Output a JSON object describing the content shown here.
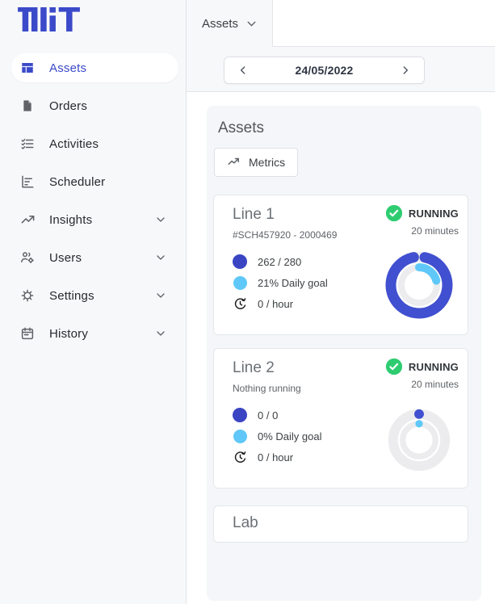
{
  "logo": {
    "brand": "TilliT"
  },
  "sidebar": {
    "items": [
      {
        "label": "Assets",
        "icon": "dashboard-icon",
        "selected": true,
        "expandable": false
      },
      {
        "label": "Orders",
        "icon": "document-icon",
        "selected": false,
        "expandable": false
      },
      {
        "label": "Activities",
        "icon": "checklist-icon",
        "selected": false,
        "expandable": false
      },
      {
        "label": "Scheduler",
        "icon": "gantt-icon",
        "selected": false,
        "expandable": false
      },
      {
        "label": "Insights",
        "icon": "trending-icon",
        "selected": false,
        "expandable": true
      },
      {
        "label": "Users",
        "icon": "users-gear-icon",
        "selected": false,
        "expandable": true
      },
      {
        "label": "Settings",
        "icon": "gear-icon",
        "selected": false,
        "expandable": true
      },
      {
        "label": "History",
        "icon": "calendar-icon",
        "selected": false,
        "expandable": true
      }
    ]
  },
  "tabbar": {
    "active_tab": "Assets"
  },
  "datebar": {
    "date": "24/05/2022"
  },
  "assets": {
    "heading": "Assets",
    "metrics_button": "Metrics",
    "cards": [
      {
        "title": "Line 1",
        "subtitle": "#SCH457920 - 2000469",
        "status": "RUNNING",
        "status_duration": "20 minutes",
        "stats": {
          "produced": "262 / 280",
          "daily_goal": "21% Daily goal",
          "rate": "0  / hour"
        },
        "donut": {
          "primary_pct": 93.6,
          "secondary_pct": 21
        }
      },
      {
        "title": "Line 2",
        "subtitle": "Nothing running",
        "status": "RUNNING",
        "status_duration": "20 minutes",
        "stats": {
          "produced": "0 / 0",
          "daily_goal": "0% Daily goal",
          "rate": "0  / hour"
        },
        "donut": {
          "primary_pct": 0,
          "secondary_pct": 0
        }
      },
      {
        "title": "Lab"
      }
    ]
  },
  "colors": {
    "primary_blue": "#3b4ac9",
    "donut_blue": "#4150d0",
    "light_blue": "#5fc8f8",
    "success_green": "#2ecc71",
    "track_gray": "#ececee",
    "panel_gray": "#f4f6f9"
  }
}
